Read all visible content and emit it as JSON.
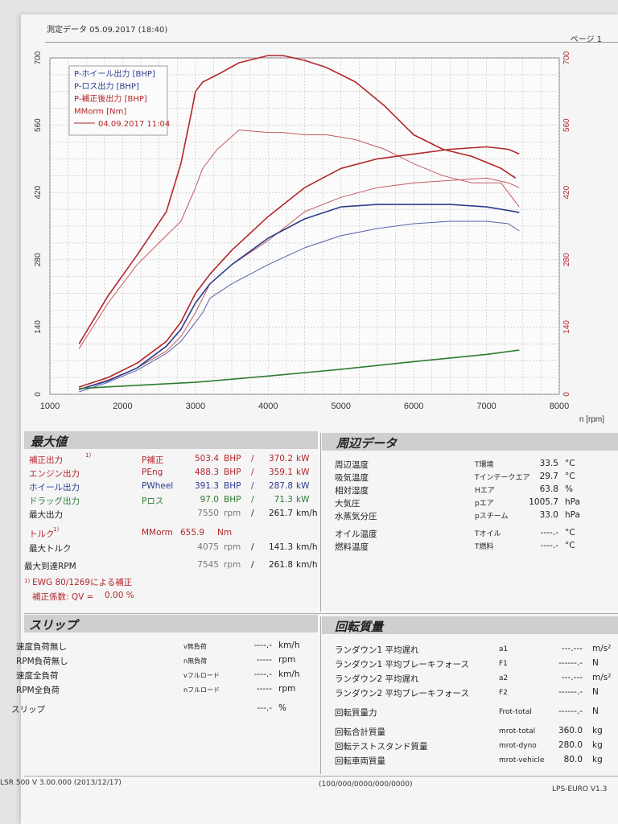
{
  "header": {
    "left": "測定データ 05.09.2017 (18:40)",
    "right": "ページ 1"
  },
  "chart_data": {
    "type": "line",
    "xlabel": "n [rpm]",
    "x_ticks": [
      "1000",
      "2000",
      "3000",
      "4000",
      "5000",
      "6000",
      "7000",
      "8000"
    ],
    "xlim": [
      1000,
      8000
    ],
    "ylim": [
      0,
      700
    ],
    "y_ticks_left": [
      "0",
      "140",
      "280",
      "420",
      "560",
      "700"
    ],
    "y_ticks_right": [
      "0",
      "140",
      "280",
      "420",
      "560",
      "700"
    ],
    "grid": true,
    "legend_position": "top-left",
    "legend": [
      {
        "label": "P-ホイール出力 [BHP]",
        "color": "#2a3c8e"
      },
      {
        "label": "P-ロス出力 [BHP]",
        "color": "#2a3c8e"
      },
      {
        "label": "P-補正後出力 [BHP]",
        "color": "#b3262a"
      },
      {
        "label": "MMorm [Nm]",
        "color": "#b3262a"
      },
      {
        "label": "04.09.2017 11:04",
        "color": "#b3262a"
      }
    ],
    "series": [
      {
        "color": "#b3262a",
        "width": 1.6,
        "x": [
          1400,
          1800,
          2200,
          2600,
          2800,
          2950,
          3000,
          3100,
          3300,
          3600,
          4000,
          4200,
          4500,
          4800,
          5200,
          5600,
          6000,
          6400,
          6800,
          7200,
          7400
        ],
        "y": [
          105,
          205,
          290,
          380,
          480,
          590,
          630,
          650,
          665,
          690,
          705,
          705,
          695,
          680,
          650,
          600,
          540,
          510,
          495,
          470,
          450
        ]
      },
      {
        "color": "#c55a5e",
        "width": 1.0,
        "x": [
          1400,
          1800,
          2200,
          2600,
          2800,
          3000,
          3100,
          3300,
          3600,
          4000,
          4200,
          4500,
          4800,
          5200,
          5600,
          6000,
          6400,
          6800,
          7200,
          7350,
          7450
        ],
        "y": [
          95,
          190,
          270,
          330,
          360,
          430,
          470,
          510,
          550,
          545,
          545,
          540,
          540,
          530,
          510,
          480,
          455,
          440,
          440,
          410,
          390
        ]
      },
      {
        "color": "#b3262a",
        "width": 1.6,
        "x": [
          1400,
          1800,
          2200,
          2600,
          2800,
          3000,
          3200,
          3500,
          4000,
          4500,
          5000,
          5500,
          6000,
          6500,
          7000,
          7300,
          7450
        ],
        "y": [
          15,
          35,
          65,
          110,
          150,
          210,
          250,
          300,
          370,
          430,
          470,
          490,
          500,
          510,
          515,
          510,
          500
        ]
      },
      {
        "color": "#c55a5e",
        "width": 1.0,
        "x": [
          1400,
          1800,
          2200,
          2600,
          2800,
          3000,
          3200,
          3500,
          4000,
          4500,
          5000,
          5500,
          6000,
          6500,
          7000,
          7300,
          7450
        ],
        "y": [
          10,
          30,
          55,
          90,
          120,
          170,
          230,
          270,
          320,
          380,
          410,
          430,
          440,
          445,
          450,
          440,
          430
        ]
      },
      {
        "color": "#2a3c8e",
        "width": 1.6,
        "x": [
          1400,
          1800,
          2200,
          2600,
          2800,
          3000,
          3200,
          3500,
          4000,
          4500,
          5000,
          5500,
          6000,
          6500,
          7000,
          7400,
          7450
        ],
        "y": [
          10,
          28,
          55,
          100,
          135,
          190,
          230,
          270,
          325,
          365,
          390,
          395,
          395,
          395,
          390,
          380,
          378
        ]
      },
      {
        "color": "#5563a8",
        "width": 1.0,
        "x": [
          1400,
          1800,
          2200,
          2600,
          2800,
          3000,
          3100,
          3200,
          3500,
          4000,
          4500,
          5000,
          5500,
          6000,
          6500,
          7000,
          7300,
          7450
        ],
        "y": [
          5,
          25,
          50,
          85,
          110,
          150,
          170,
          200,
          230,
          270,
          305,
          330,
          345,
          355,
          360,
          360,
          355,
          340
        ]
      },
      {
        "color": "#2e7d32",
        "width": 1.6,
        "x": [
          1400,
          2000,
          3000,
          4000,
          5000,
          6000,
          7000,
          7450
        ],
        "y": [
          12,
          17,
          25,
          38,
          52,
          68,
          83,
          92
        ]
      }
    ]
  },
  "max_values": {
    "title": "最大値",
    "rows": [
      {
        "label": "補正出力",
        "note": "1)",
        "sym": "P補正",
        "v1": "503.4",
        "u1": "BHP",
        "v2": "370.2",
        "u2": "kW"
      },
      {
        "label": "エンジン出力",
        "note": "",
        "sym": "PEng",
        "v1": "488.3",
        "u1": "BHP",
        "v2": "359.1",
        "u2": "kW"
      },
      {
        "label": "ホイール出力",
        "note": "",
        "sym": "PWheel",
        "v1": "391.3",
        "u1": "BHP",
        "v2": "287.8",
        "u2": "kW"
      },
      {
        "label": "ドラッグ出力",
        "note": "",
        "sym": "Pロス",
        "v1": "97.0",
        "u1": "BHP",
        "v2": "71.3",
        "u2": "kW"
      }
    ],
    "max_output": {
      "label": "最大出力",
      "v1": "7550",
      "u1": "rpm",
      "v2": "261.7",
      "u2": "km/h"
    },
    "torque": {
      "label": "トルク",
      "note": "1)",
      "sym": "MMorm",
      "v": "655.9",
      "u": "Nm"
    },
    "max_torque": {
      "label": "最大トルク",
      "v1": "4075",
      "u1": "rpm",
      "v2": "141.3",
      "u2": "km/h"
    },
    "max_rpm": {
      "label": "最大到達RPM",
      "v1": "7545",
      "u1": "rpm",
      "v2": "261.8",
      "u2": "km/h"
    },
    "footnote": "EWG 80/1269による補正",
    "footnote_num": "1)",
    "factor_label": "補正係数: QV =",
    "factor_value": "0.00 %"
  },
  "ambient": {
    "title": "周辺データ",
    "rows": [
      {
        "label": "周辺温度",
        "sym": "T環境",
        "v": "33.5",
        "u": "°C"
      },
      {
        "label": "吸気温度",
        "sym": "Tインテークエア",
        "v": "29.7",
        "u": "°C"
      },
      {
        "label": "相対湿度",
        "sym": "Hエア",
        "v": "63.8",
        "u": "%"
      },
      {
        "label": "大気圧",
        "sym": "pエア",
        "v": "1005.7",
        "u": "hPa"
      },
      {
        "label": "水蒸気分圧",
        "sym": "pスチーム",
        "v": "33.0",
        "u": "hPa"
      },
      {
        "label": "オイル温度",
        "sym": "Tオイル",
        "v": "----.-",
        "u": "°C"
      },
      {
        "label": "燃料温度",
        "sym": "T燃料",
        "v": "----.-",
        "u": "°C"
      }
    ]
  },
  "slip": {
    "title": "スリップ",
    "rows": [
      {
        "label": "速度負荷無し",
        "sym": "v無負荷",
        "v": "----.-",
        "u": "km/h"
      },
      {
        "label": "RPM負荷無し",
        "sym": "n無負荷",
        "v": "-----",
        "u": "rpm"
      },
      {
        "label": "速度全負荷",
        "sym": "vフルロード",
        "v": "----.-",
        "u": "km/h"
      },
      {
        "label": "RPM全負荷",
        "sym": "nフルロード",
        "v": "-----",
        "u": "rpm"
      },
      {
        "label": "スリップ",
        "sym": "",
        "v": "---.-",
        "u": "%"
      }
    ]
  },
  "rotation": {
    "title": "回転質量",
    "rows": [
      {
        "label": "ランダウン1 平均遅れ",
        "sym": "a1",
        "v": "---.---",
        "u": "m/s²"
      },
      {
        "label": "ランダウン1 平均ブレーキフォース",
        "sym": "F1",
        "v": "------.-",
        "u": "N"
      },
      {
        "label": "ランダウン2 平均遅れ",
        "sym": "a2",
        "v": "---.---",
        "u": "m/s²"
      },
      {
        "label": "ランダウン2 平均ブレーキフォース",
        "sym": "F2",
        "v": "------.-",
        "u": "N"
      },
      {
        "label": "回転質量力",
        "sym": "Frot-total",
        "v": "------.-",
        "u": "N"
      },
      {
        "label": "回転合計質量",
        "sym": "mrot-total",
        "v": "360.0",
        "u": "kg"
      },
      {
        "label": "回転テストスタンド質量",
        "sym": "mrot-dyno",
        "v": "280.0",
        "u": "kg"
      },
      {
        "label": "回転車両質量",
        "sym": "mrot-vehicle",
        "v": "80.0",
        "u": "kg"
      }
    ]
  },
  "footer": {
    "left": "LSR 500 V 3.00.000 (2013/12/17)",
    "center": "(100/000/0000/000/0000)",
    "right": "LPS-EURO V1.3"
  }
}
